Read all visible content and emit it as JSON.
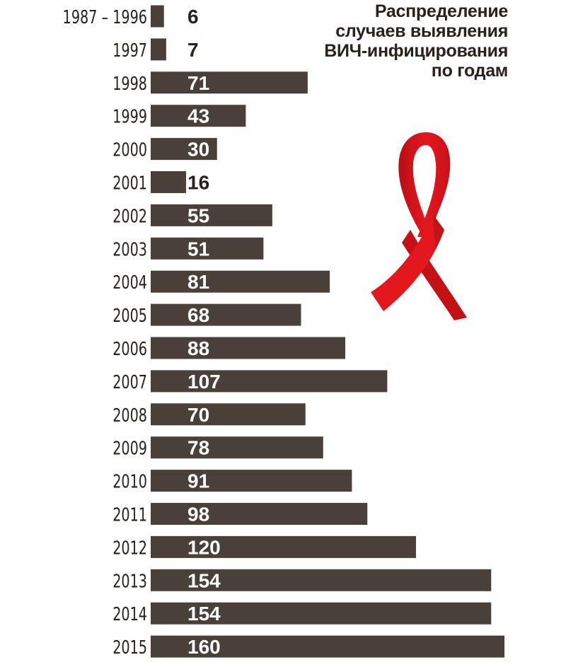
{
  "title_lines": [
    "Распределение",
    "случаев выявления",
    "ВИЧ-инфицирования",
    "по годам"
  ],
  "colors": {
    "bar": "#4a4039",
    "label_on_bar": "#ffffff",
    "label_outside": "#2a211d",
    "ribbon": "#e3181d"
  },
  "chart_data": {
    "type": "bar",
    "orientation": "horizontal",
    "title": "Распределение случаев выявления ВИЧ-инфицирования по годам",
    "categories": [
      "1987 – 1996",
      "1997",
      "1998",
      "1999",
      "2000",
      "2001",
      "2002",
      "2003",
      "2004",
      "2005",
      "2006",
      "2007",
      "2008",
      "2009",
      "2010",
      "2011",
      "2012",
      "2013",
      "2014",
      "2015"
    ],
    "values": [
      6,
      7,
      71,
      43,
      30,
      16,
      55,
      51,
      81,
      68,
      88,
      107,
      70,
      78,
      91,
      98,
      120,
      154,
      154,
      160
    ],
    "data_labels": [
      "6",
      "7",
      "71",
      "43",
      "30",
      "16",
      "55",
      "51",
      "81",
      "68",
      "88",
      "107",
      "70",
      "78",
      "91",
      "98",
      "120",
      "154",
      "154",
      "160"
    ],
    "xlim": [
      0,
      160
    ],
    "grid": false,
    "legend": "none"
  }
}
